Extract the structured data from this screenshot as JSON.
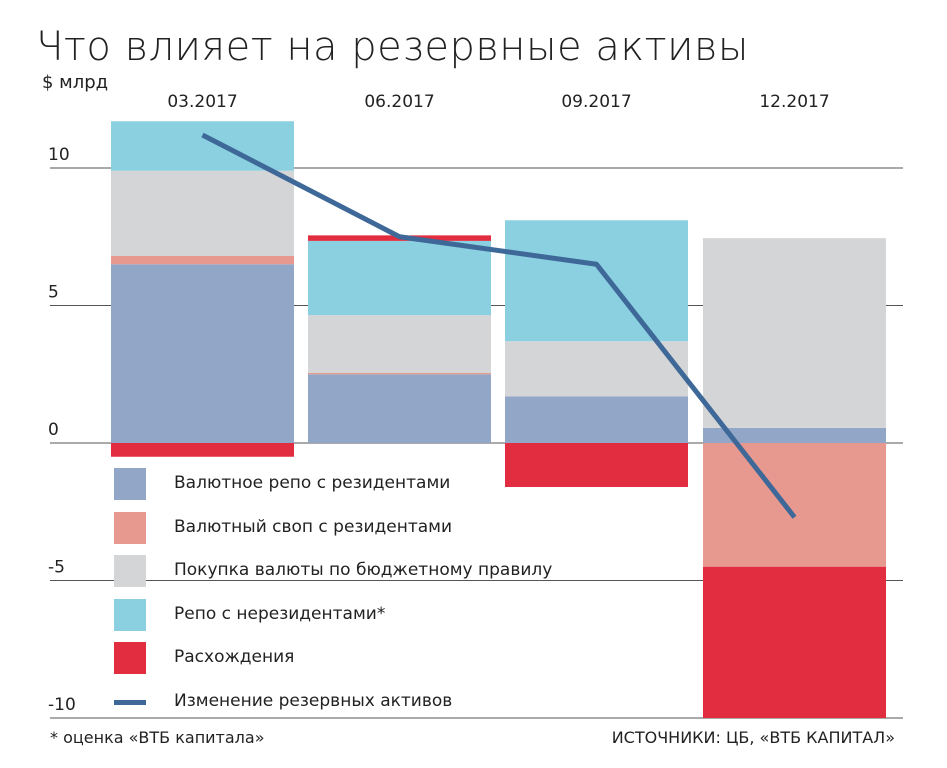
{
  "title": "Что влияет на резервные активы",
  "unit_label": "$ млрд",
  "footnote": "* оценка «ВТБ капитала»",
  "source": "ИСТОЧНИКИ: ЦБ, «ВТБ КАПИТАЛ»",
  "chart_data": {
    "type": "bar",
    "stacked": true,
    "categories": [
      "03.2017",
      "06.2017",
      "09.2017",
      "12.2017"
    ],
    "ylim": [
      -10,
      11.5
    ],
    "yticks": [
      10,
      5,
      0,
      -5,
      -10
    ],
    "ytick_labels": [
      "10",
      "5",
      "0",
      "-5",
      "-10"
    ],
    "grid": true,
    "legend_position": "inside-left",
    "series": [
      {
        "name": "Валютное репо с резидентами",
        "color": "#92a6c8",
        "values": [
          6.5,
          2.5,
          1.7,
          0.55
        ]
      },
      {
        "name": "Валютный своп с резидентами",
        "color": "#e8998f",
        "values": [
          0.3,
          0.05,
          0,
          -4.5
        ]
      },
      {
        "name": "Покупка валюты по бюджетному правилу",
        "color": "#d4d5d7",
        "values": [
          3.1,
          2.1,
          2.0,
          6.9
        ]
      },
      {
        "name": "Репо с нерезидентами*",
        "color": "#8ad0e0",
        "values": [
          1.8,
          2.7,
          4.4,
          0
        ]
      },
      {
        "name": "Расхождения",
        "color": "#e22c3f",
        "values": [
          -0.5,
          0.2,
          -1.6,
          -5.5
        ]
      }
    ],
    "line_series": {
      "name": "Изменение резервных активов",
      "color": "#3e6898",
      "values": [
        11.2,
        7.5,
        6.5,
        -2.7
      ]
    }
  }
}
